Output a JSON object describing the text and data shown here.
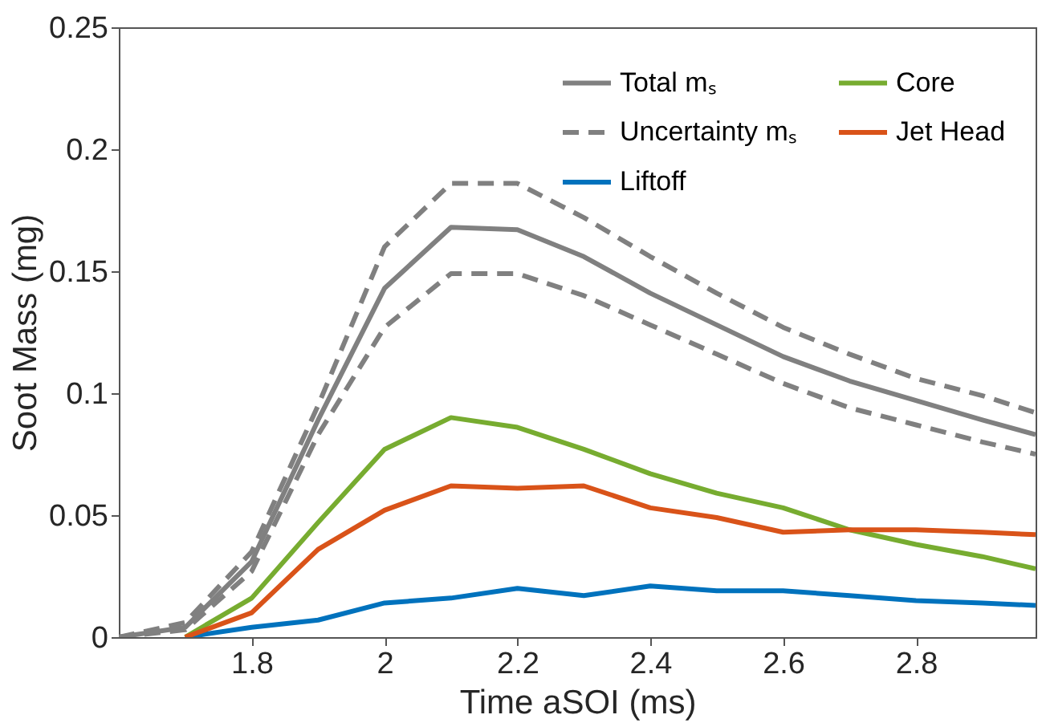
{
  "chart_data": {
    "type": "line",
    "xlabel": "Time aSOI (ms)",
    "ylabel": "Soot Mass (mg)",
    "x": [
      1.6,
      1.7,
      1.8,
      1.9,
      2.0,
      2.1,
      2.2,
      2.3,
      2.4,
      2.5,
      2.6,
      2.7,
      2.8,
      2.9,
      2.98
    ],
    "xlim": [
      1.6,
      2.98
    ],
    "xticks": [
      1.8,
      2,
      2.2,
      2.4,
      2.6,
      2.8
    ],
    "ylim": [
      0,
      0.25
    ],
    "yticks": [
      0,
      0.05,
      0.1,
      0.15,
      0.2,
      0.25
    ],
    "grid": false,
    "legend": "top right",
    "marker": "none",
    "line_style": "solid",
    "series": [
      {
        "name": "Total mₛ",
        "color": "#808080",
        "values": [
          0,
          0.004,
          0.031,
          0.089,
          0.143,
          0.168,
          0.167,
          0.156,
          0.141,
          0.128,
          0.115,
          0.105,
          0.097,
          0.089,
          0.083
        ]
      },
      {
        "name": "Uncertainty mₛ",
        "color": "#808080",
        "line_style": "dashed",
        "values": [
          0,
          0.006,
          0.035,
          0.095,
          0.16,
          0.186,
          0.186,
          0.172,
          0.156,
          0.141,
          0.127,
          0.116,
          0.106,
          0.099,
          0.092
        ]
      },
      {
        "color": "#808080",
        "line_style": "dashed",
        "values": [
          0,
          0.003,
          0.027,
          0.083,
          0.127,
          0.149,
          0.149,
          0.14,
          0.128,
          0.116,
          0.104,
          0.094,
          0.087,
          0.08,
          0.075
        ]
      },
      {
        "name": "Liftoff",
        "color": "#0072bd",
        "values": [
          null,
          0,
          0.004,
          0.007,
          0.014,
          0.016,
          0.02,
          0.017,
          0.021,
          0.019,
          0.019,
          0.017,
          0.015,
          0.014,
          0.013
        ]
      },
      {
        "name": "Core",
        "color": "#77ac30",
        "values": [
          null,
          0,
          0.016,
          0.047,
          0.077,
          0.09,
          0.086,
          0.077,
          0.067,
          0.059,
          0.053,
          0.044,
          0.038,
          0.033,
          0.028
        ]
      },
      {
        "name": "Jet Head",
        "color": "#d95319",
        "values": [
          null,
          0,
          0.01,
          0.036,
          0.052,
          0.062,
          0.061,
          0.062,
          0.053,
          0.049,
          0.043,
          0.044,
          0.044,
          0.043,
          0.042
        ]
      }
    ]
  }
}
